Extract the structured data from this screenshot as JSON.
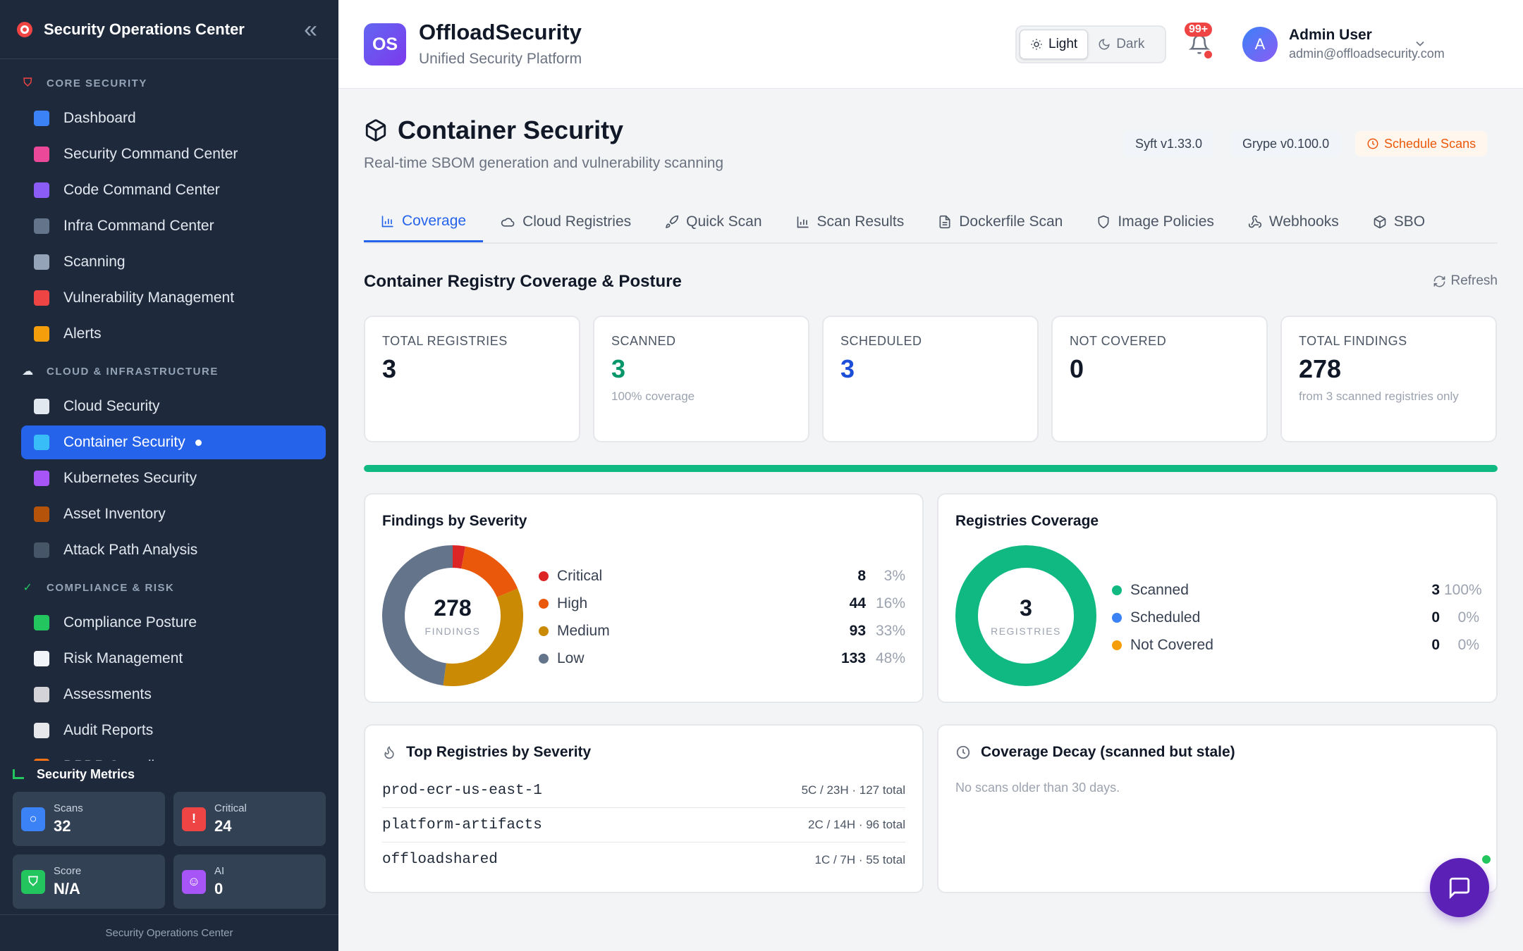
{
  "sidebar": {
    "title": "Security Operations Center",
    "sections": [
      {
        "label": "CORE SECURITY",
        "items": [
          {
            "label": "Dashboard",
            "icon": "bar-chart-icon",
            "color": "#3b82f6"
          },
          {
            "label": "Security Command Center",
            "icon": "brain-icon",
            "color": "#ec4899"
          },
          {
            "label": "Code Command Center",
            "icon": "dna-icon",
            "color": "#8b5cf6"
          },
          {
            "label": "Infra Command Center",
            "icon": "monitor-icon",
            "color": "#64748b"
          },
          {
            "label": "Scanning",
            "icon": "magnifier-icon",
            "color": "#94a3b8"
          },
          {
            "label": "Vulnerability Management",
            "icon": "shield-icon",
            "color": "#ef4444"
          },
          {
            "label": "Alerts",
            "icon": "bell-icon",
            "color": "#f59e0b"
          }
        ]
      },
      {
        "label": "CLOUD & INFRASTRUCTURE",
        "items": [
          {
            "label": "Cloud Security",
            "icon": "cloud-icon",
            "color": "#e2e8f0"
          },
          {
            "label": "Container Security",
            "icon": "whale-icon",
            "color": "#38bdf8"
          },
          {
            "label": "Kubernetes Security",
            "icon": "helm-icon",
            "color": "#a855f7"
          },
          {
            "label": "Asset Inventory",
            "icon": "package-icon",
            "color": "#b45309"
          },
          {
            "label": "Attack Path Analysis",
            "icon": "graph-icon",
            "color": "#475569"
          }
        ]
      },
      {
        "label": "COMPLIANCE & RISK",
        "items": [
          {
            "label": "Compliance Posture",
            "icon": "check-icon",
            "color": "#22c55e"
          },
          {
            "label": "Risk Management",
            "icon": "trend-chart-icon",
            "color": "#f1f5f9"
          },
          {
            "label": "Assessments",
            "icon": "clipboard-icon",
            "color": "#d4d4d8"
          },
          {
            "label": "Audit Reports",
            "icon": "document-icon",
            "color": "#e5e7eb"
          },
          {
            "label": "DPDP Compliance",
            "icon": "flag-icon",
            "color": "#f97316"
          }
        ]
      }
    ],
    "metrics_title": "Security Metrics",
    "metrics": [
      {
        "label": "Scans",
        "value": "32",
        "icon": "magnifier-icon",
        "color": "#3b82f6"
      },
      {
        "label": "Critical",
        "value": "24",
        "icon": "warning-icon",
        "color": "#ef4444"
      },
      {
        "label": "Score",
        "value": "N/A",
        "icon": "shield-icon",
        "color": "#22c55e"
      },
      {
        "label": "AI",
        "value": "0",
        "icon": "robot-icon",
        "color": "#a855f7"
      }
    ],
    "footer": "Security Operations Center"
  },
  "header": {
    "logo_text": "OS",
    "brand_name": "OffloadSecurity",
    "brand_sub": "Unified Security Platform",
    "theme_light": "Light",
    "theme_dark": "Dark",
    "notification_badge": "99+",
    "avatar_letter": "A",
    "user_name": "Admin User",
    "user_email": "admin@offloadsecurity.com"
  },
  "page": {
    "title": "Container Security",
    "subtitle": "Real-time SBOM generation and vulnerability scanning",
    "pill_syft": "Syft v1.33.0",
    "pill_grype": "Grype v0.100.0",
    "schedule_label": "Schedule Scans",
    "tabs": [
      "Coverage",
      "Cloud Registries",
      "Quick Scan",
      "Scan Results",
      "Dockerfile Scan",
      "Image Policies",
      "Webhooks",
      "SBO"
    ],
    "section_title": "Container Registry Coverage & Posture",
    "refresh_label": "Refresh"
  },
  "stats": [
    {
      "label": "TOTAL REGISTRIES",
      "value": "3",
      "note": "",
      "color": "#111827"
    },
    {
      "label": "SCANNED",
      "value": "3",
      "note": "100% coverage",
      "color": "#059669"
    },
    {
      "label": "SCHEDULED",
      "value": "3",
      "note": "",
      "color": "#1d4ed8"
    },
    {
      "label": "NOT COVERED",
      "value": "0",
      "note": "",
      "color": "#111827"
    },
    {
      "label": "TOTAL FINDINGS",
      "value": "278",
      "note": "from 3 scanned registries only",
      "color": "#111827"
    }
  ],
  "coverage_progress": 1.0,
  "findings": {
    "title": "Findings by Severity",
    "center_value": "278",
    "center_label": "FINDINGS",
    "items": [
      {
        "name": "Critical",
        "value": 8,
        "pct": "3%",
        "color": "#dc2626"
      },
      {
        "name": "High",
        "value": 44,
        "pct": "16%",
        "color": "#ea580c"
      },
      {
        "name": "Medium",
        "value": 93,
        "pct": "33%",
        "color": "#ca8a04"
      },
      {
        "name": "Low",
        "value": 133,
        "pct": "48%",
        "color": "#64748b"
      }
    ]
  },
  "coverage": {
    "title": "Registries Coverage",
    "center_value": "3",
    "center_label": "REGISTRIES",
    "items": [
      {
        "name": "Scanned",
        "value": 3,
        "pct": "100%",
        "color": "#10b981"
      },
      {
        "name": "Scheduled",
        "value": 0,
        "pct": "0%",
        "color": "#3b82f6"
      },
      {
        "name": "Not Covered",
        "value": 0,
        "pct": "0%",
        "color": "#f59e0b"
      }
    ]
  },
  "top_registries": {
    "title": "Top Registries by Severity",
    "rows": [
      {
        "name": "prod-ecr-us-east-1",
        "meta": "5C / 23H · 127 total"
      },
      {
        "name": "platform-artifacts",
        "meta": "2C / 14H · 96 total"
      },
      {
        "name": "offloadshared",
        "meta": "1C / 7H · 55 total"
      }
    ]
  },
  "decay": {
    "title": "Coverage Decay (scanned but stale)",
    "empty": "No scans older than 30 days."
  }
}
